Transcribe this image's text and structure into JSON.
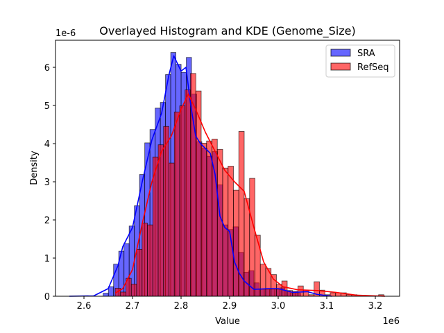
{
  "chart_data": {
    "type": "bar",
    "title": "Overlayed Histogram and KDE (Genome_Size)",
    "xlabel": "Value",
    "ylabel": "Density",
    "x_offset_label": "1e6",
    "y_offset_label": "1e-6",
    "xlim": [
      2.5414,
      3.25
    ],
    "ylim": [
      0,
      6.71
    ],
    "xticks": [
      2.6,
      2.7,
      2.8,
      2.9,
      3.0,
      3.1,
      3.2
    ],
    "xtick_labels": [
      "2.6",
      "2.7",
      "2.8",
      "2.9",
      "3.0",
      "3.1",
      "3.2"
    ],
    "yticks": [
      0,
      1,
      2,
      3,
      4,
      5,
      6
    ],
    "ytick_labels": [
      "0",
      "1",
      "2",
      "3",
      "4",
      "5",
      "6"
    ],
    "grid": false,
    "legend_position": "top-right",
    "series": [
      {
        "name": "SRA",
        "color": "#0000ff",
        "bin_start": 2.6396,
        "bin_width": 0.0107,
        "values": [
          0.08,
          0.25,
          0.84,
          1.18,
          1.38,
          1.84,
          2.37,
          3.19,
          4.02,
          4.37,
          4.93,
          5.08,
          5.81,
          6.39,
          6.08,
          5.87,
          6.26,
          5.3,
          4.05,
          3.88,
          3.67,
          3.79,
          2.92,
          1.87,
          1.75,
          1.82,
          1.15,
          0.63,
          0.67,
          0.35,
          0.18,
          0.18,
          0.18,
          0.18,
          0.22,
          0.14,
          0.08,
          0.08
        ],
        "kde": [
          [
            2.57,
            0
          ],
          [
            2.62,
            0.01
          ],
          [
            2.65,
            0.2
          ],
          [
            2.67,
            0.8
          ],
          [
            2.68,
            1.3
          ],
          [
            2.7,
            1.8
          ],
          [
            2.72,
            3.0
          ],
          [
            2.74,
            4.1
          ],
          [
            2.76,
            4.8
          ],
          [
            2.775,
            5.8
          ],
          [
            2.785,
            6.3
          ],
          [
            2.8,
            5.9
          ],
          [
            2.81,
            6.0
          ],
          [
            2.82,
            5.0
          ],
          [
            2.83,
            4.2
          ],
          [
            2.84,
            4.0
          ],
          [
            2.86,
            3.75
          ],
          [
            2.87,
            3.2
          ],
          [
            2.88,
            2.1
          ],
          [
            2.89,
            1.8
          ],
          [
            2.9,
            1.7
          ],
          [
            2.91,
            0.9
          ],
          [
            2.92,
            0.6
          ],
          [
            2.93,
            0.4
          ],
          [
            2.95,
            0.18
          ],
          [
            2.98,
            0.2
          ],
          [
            3.0,
            0.2
          ],
          [
            3.03,
            0.1
          ],
          [
            3.06,
            0.12
          ],
          [
            3.08,
            0.05
          ],
          [
            3.11,
            0.0
          ]
        ]
      },
      {
        "name": "RefSeq",
        "color": "#ff0000",
        "bin_start": 2.6643,
        "bin_width": 0.01107,
        "values": [
          0.21,
          0.11,
          0.47,
          0.32,
          1.23,
          1.92,
          1.87,
          3.65,
          3.97,
          4.45,
          3.49,
          4.83,
          4.99,
          5.41,
          5.84,
          5.38,
          4.01,
          4.07,
          4.12,
          3.85,
          3.36,
          3.41,
          2.78,
          4.32,
          2.56,
          3.09,
          1.6,
          0.84,
          0.73,
          0.57,
          0.31,
          0.4,
          0.15,
          0.13,
          0.27,
          0.16,
          0.04,
          0.38,
          0.16,
          0.04,
          0.09,
          0.09,
          0.09,
          0.04,
          0.04,
          0,
          0,
          0,
          0,
          0.04
        ],
        "kde": [
          [
            2.664,
            0.08
          ],
          [
            2.68,
            0.2
          ],
          [
            2.7,
            0.7
          ],
          [
            2.72,
            1.9
          ],
          [
            2.74,
            3.0
          ],
          [
            2.76,
            3.8
          ],
          [
            2.78,
            4.2
          ],
          [
            2.8,
            4.9
          ],
          [
            2.815,
            5.3
          ],
          [
            2.83,
            4.9
          ],
          [
            2.85,
            4.3
          ],
          [
            2.87,
            3.8
          ],
          [
            2.89,
            3.3
          ],
          [
            2.91,
            3.0
          ],
          [
            2.93,
            2.75
          ],
          [
            2.95,
            1.8
          ],
          [
            2.97,
            0.9
          ],
          [
            2.99,
            0.45
          ],
          [
            3.01,
            0.25
          ],
          [
            3.04,
            0.17
          ],
          [
            3.08,
            0.15
          ],
          [
            3.12,
            0.1
          ],
          [
            3.16,
            0.03
          ],
          [
            3.22,
            0.0
          ]
        ]
      }
    ]
  }
}
